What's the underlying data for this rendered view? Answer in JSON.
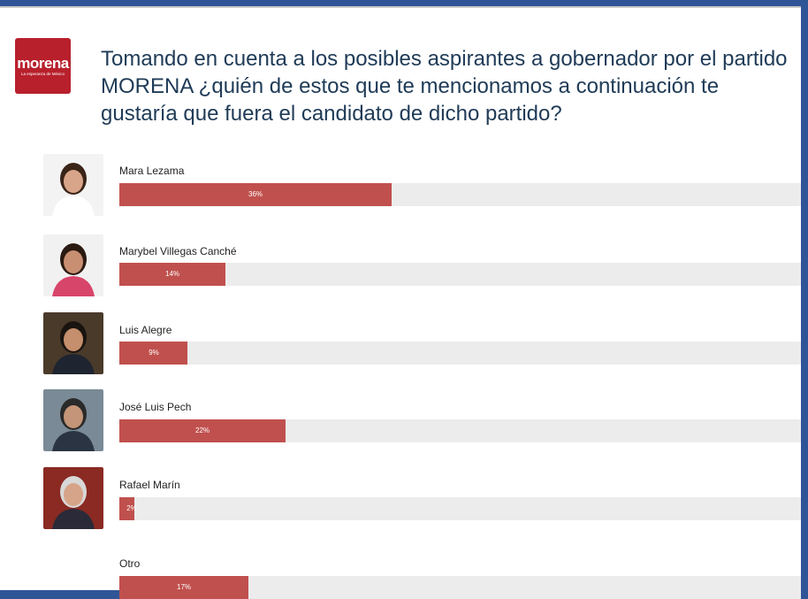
{
  "logo": {
    "word": "morena",
    "tagline": "La esperanza de México",
    "color": "#b8202c"
  },
  "question": "Tomando en cuenta a los posibles aspirantes a gobernador por el partido MORENA ¿quién de estos que te mencionamos a continuación te gustaría que fuera el candidato de dicho partido?",
  "colors": {
    "bar": "#c0504d",
    "track": "#ececec",
    "frame": "#2f5597"
  },
  "chart_data": {
    "type": "bar",
    "orientation": "horizontal",
    "categories": [
      "Mara Lezama",
      "Marybel Villegas Canché",
      "Luis Alegre",
      "José Luis Pech",
      "Rafael Marín",
      "Otro"
    ],
    "values": [
      36,
      14,
      9,
      22,
      2,
      17
    ],
    "value_labels": [
      "36%",
      "14%",
      "9%",
      "22%",
      "2%",
      "17%"
    ],
    "xlim": [
      0,
      90
    ]
  }
}
